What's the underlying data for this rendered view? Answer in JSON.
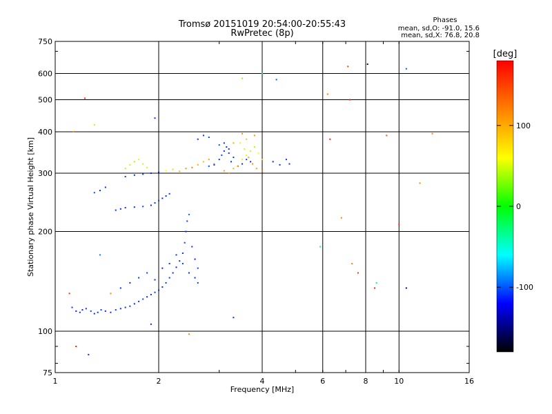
{
  "chart_data": {
    "type": "scatter",
    "title": "Tromsø 20151019 20:54:00-20:55:43",
    "subtitle": "RwPretec (8p)",
    "xlabel": "Frequency [MHz]",
    "ylabel": "Stationary phase Virtual Height [km]",
    "x_scale": "log",
    "y_scale": "log",
    "xlim": [
      1,
      16
    ],
    "ylim": [
      75,
      750
    ],
    "x_ticks": [
      1,
      2,
      4,
      6,
      8,
      10,
      16
    ],
    "y_ticks": [
      75,
      100,
      200,
      300,
      400,
      500,
      600,
      750
    ],
    "grid": true,
    "stats_header": "Phases",
    "stats_lines": [
      "mean, sd,O: -91.0, 15.6",
      "mean, sd,X: 76.8, 20.8"
    ],
    "colorbar": {
      "label": "[deg]",
      "ticks": [
        100,
        0,
        -100
      ],
      "range": [
        -180,
        180
      ],
      "colors": [
        "#ff0000",
        "#ff8000",
        "#ffff00",
        "#00ff00",
        "#00ffff",
        "#0000ff",
        "#000000"
      ]
    },
    "series": [
      {
        "points": [
          [
            1.12,
            118,
            -110
          ],
          [
            1.15,
            115,
            -112
          ],
          [
            1.18,
            114,
            -108
          ],
          [
            1.2,
            116,
            -115
          ],
          [
            1.23,
            117,
            -110
          ],
          [
            1.27,
            115,
            -105
          ],
          [
            1.3,
            113,
            -112
          ],
          [
            1.33,
            114,
            -110
          ],
          [
            1.36,
            116,
            -108
          ],
          [
            1.4,
            115,
            -112
          ],
          [
            1.45,
            114,
            -110
          ],
          [
            1.5,
            116,
            -109
          ],
          [
            1.55,
            117,
            -111
          ],
          [
            1.6,
            118,
            -110
          ],
          [
            1.65,
            119,
            -108
          ],
          [
            1.7,
            121,
            -112
          ],
          [
            1.75,
            123,
            -110
          ],
          [
            1.8,
            125,
            -106
          ],
          [
            1.85,
            127,
            -112
          ],
          [
            1.9,
            129,
            -110
          ],
          [
            1.95,
            131,
            -108
          ],
          [
            2.0,
            133,
            -110
          ],
          [
            2.05,
            136,
            -112
          ],
          [
            2.1,
            140,
            -109
          ],
          [
            2.15,
            145,
            -108
          ],
          [
            2.2,
            150,
            -110
          ],
          [
            2.25,
            156,
            -112
          ],
          [
            2.3,
            163,
            -108
          ],
          [
            2.35,
            172,
            -110
          ],
          [
            2.38,
            185,
            -106
          ],
          [
            2.4,
            200,
            -110
          ],
          [
            2.42,
            215,
            -108
          ],
          [
            2.45,
            225,
            -95
          ],
          [
            1.55,
            135,
            -110
          ],
          [
            1.65,
            140,
            -112
          ],
          [
            1.75,
            145,
            -108
          ],
          [
            1.85,
            150,
            -105
          ],
          [
            1.95,
            143,
            -110
          ],
          [
            2.05,
            155,
            -112
          ],
          [
            2.15,
            160,
            -109
          ],
          [
            2.25,
            170,
            -110
          ],
          [
            2.35,
            160,
            -108
          ],
          [
            2.45,
            150,
            -112
          ],
          [
            2.55,
            145,
            -110
          ],
          [
            2.6,
            140,
            -108
          ],
          [
            2.5,
            180,
            -110
          ],
          [
            2.55,
            165,
            -112
          ],
          [
            2.6,
            155,
            -106
          ]
        ]
      },
      {
        "points": [
          [
            1.5,
            232,
            -110
          ],
          [
            1.55,
            234,
            -112
          ],
          [
            1.6,
            236,
            -108
          ],
          [
            1.7,
            237,
            -110
          ],
          [
            1.8,
            238,
            -106
          ],
          [
            1.9,
            240,
            -112
          ],
          [
            1.95,
            244,
            -110
          ],
          [
            2.0,
            248,
            -108
          ],
          [
            2.05,
            252,
            -110
          ],
          [
            2.1,
            256,
            -112
          ],
          [
            2.15,
            260,
            -108
          ],
          [
            1.3,
            262,
            -105
          ],
          [
            1.35,
            266,
            -110
          ],
          [
            1.4,
            272,
            -112
          ],
          [
            1.6,
            293,
            -108
          ],
          [
            1.7,
            296,
            -110
          ],
          [
            1.8,
            298,
            -106
          ],
          [
            1.9,
            300,
            -112
          ],
          [
            2.0,
            302,
            -110
          ]
        ]
      },
      {
        "points": [
          [
            1.6,
            310,
            40
          ],
          [
            1.65,
            318,
            45
          ],
          [
            1.7,
            325,
            38
          ],
          [
            1.75,
            330,
            50
          ],
          [
            1.8,
            320,
            42
          ],
          [
            1.85,
            312,
            48
          ],
          [
            2.1,
            305,
            60
          ],
          [
            2.2,
            308,
            80
          ],
          [
            2.3,
            304,
            95
          ],
          [
            2.4,
            310,
            110
          ],
          [
            2.5,
            312,
            120
          ],
          [
            2.6,
            318,
            100
          ],
          [
            2.7,
            325,
            90
          ],
          [
            2.8,
            330,
            105
          ],
          [
            2.9,
            320,
            115
          ]
        ]
      },
      {
        "points": [
          [
            3.0,
            330,
            -110
          ],
          [
            3.05,
            340,
            -105
          ],
          [
            3.1,
            350,
            -112
          ],
          [
            3.15,
            360,
            -108
          ],
          [
            3.2,
            355,
            -110
          ],
          [
            3.0,
            365,
            -100
          ],
          [
            3.1,
            370,
            -110
          ],
          [
            3.2,
            345,
            -112
          ],
          [
            3.3,
            335,
            -108
          ],
          [
            3.25,
            325,
            -110
          ],
          [
            2.8,
            315,
            -105
          ],
          [
            2.9,
            318,
            -112
          ],
          [
            2.6,
            380,
            -110
          ],
          [
            2.7,
            390,
            -108
          ],
          [
            2.8,
            385,
            -106
          ],
          [
            3.4,
            315,
            -110
          ],
          [
            3.5,
            320,
            -112
          ],
          [
            3.6,
            330,
            -108
          ],
          [
            3.7,
            325,
            -110
          ],
          [
            4.3,
            325,
            -110
          ],
          [
            4.5,
            318,
            -112
          ],
          [
            4.7,
            330,
            -108
          ],
          [
            4.8,
            320,
            -110
          ]
        ]
      },
      {
        "points": [
          [
            3.3,
            310,
            95
          ],
          [
            3.4,
            315,
            110
          ],
          [
            3.5,
            330,
            70
          ],
          [
            3.6,
            340,
            55
          ],
          [
            3.7,
            350,
            45
          ],
          [
            3.8,
            360,
            40
          ],
          [
            3.9,
            345,
            60
          ],
          [
            4.0,
            330,
            80
          ],
          [
            3.45,
            370,
            65
          ],
          [
            3.55,
            355,
            50
          ],
          [
            3.65,
            335,
            100
          ],
          [
            3.75,
            320,
            115
          ],
          [
            3.85,
            310,
            105
          ],
          [
            4.0,
            305,
            120
          ],
          [
            3.6,
            380,
            90
          ],
          [
            3.8,
            390,
            110
          ],
          [
            3.5,
            395,
            120
          ],
          [
            3.3,
            370,
            100
          ],
          [
            3.2,
            300,
            115
          ],
          [
            3.1,
            305,
            110
          ]
        ]
      },
      {
        "points": [
          [
            1.1,
            130,
            160
          ],
          [
            1.13,
            400,
            120
          ],
          [
            1.22,
            505,
            160
          ],
          [
            1.3,
            420,
            40
          ],
          [
            1.35,
            170,
            -90
          ],
          [
            1.45,
            130,
            120
          ],
          [
            1.9,
            105,
            -110
          ],
          [
            1.95,
            440,
            -110
          ],
          [
            2.45,
            98,
            120
          ],
          [
            3.3,
            110,
            -110
          ],
          [
            3.5,
            580,
            30
          ],
          [
            4.0,
            600,
            -20
          ],
          [
            4.4,
            575,
            -100
          ],
          [
            5.9,
            180,
            -40
          ],
          [
            6.2,
            520,
            120
          ],
          [
            6.3,
            380,
            170
          ],
          [
            6.8,
            220,
            120
          ],
          [
            7.1,
            630,
            150
          ],
          [
            7.2,
            500,
            170
          ],
          [
            7.3,
            160,
            120
          ],
          [
            7.6,
            150,
            160
          ],
          [
            8.1,
            640,
            -180
          ],
          [
            8.5,
            135,
            170
          ],
          [
            8.6,
            140,
            -20
          ],
          [
            9.2,
            390,
            140
          ],
          [
            10.0,
            210,
            160
          ],
          [
            10.5,
            620,
            -100
          ],
          [
            10.5,
            135,
            -150
          ],
          [
            11.5,
            280,
            120
          ],
          [
            12.5,
            395,
            120
          ],
          [
            1.15,
            90,
            170
          ],
          [
            1.25,
            85,
            -110
          ]
        ]
      }
    ]
  }
}
